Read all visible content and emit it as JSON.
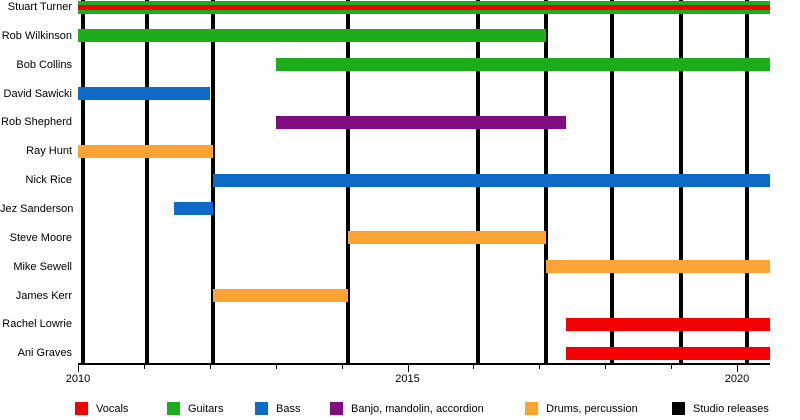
{
  "chart_data": {
    "type": "gantt",
    "description": "Band member tenure timeline with studio release markers",
    "x_axis": {
      "min": 2010,
      "max": 2020.5,
      "minor_tick_interval": 1,
      "major_tick_years": [
        2010,
        2015,
        2020
      ],
      "major_tick_labels": [
        "2010",
        "2015",
        "2020"
      ],
      "grid": false
    },
    "colors": {
      "vocals": "#f40000",
      "guitars": "#1cac1c",
      "bass": "#0d6bc7",
      "banjo": "#800d80",
      "drums": "#fba433",
      "releases": "#000000"
    },
    "members": [
      {
        "name": "Stuart Turner",
        "bars": [
          {
            "start": 2010.0,
            "end": 2020.5,
            "role": "Guitars",
            "color": "guitars"
          },
          {
            "start": 2010.0,
            "end": 2020.5,
            "role": "Vocals",
            "color": "vocals",
            "overlay_stripe": true
          }
        ]
      },
      {
        "name": "Rob Wilkinson",
        "bars": [
          {
            "start": 2010.0,
            "end": 2017.1,
            "role": "Guitars",
            "color": "guitars"
          }
        ]
      },
      {
        "name": "Bob Collins",
        "bars": [
          {
            "start": 2013.0,
            "end": 2020.5,
            "role": "Guitars",
            "color": "guitars"
          }
        ]
      },
      {
        "name": "David Sawicki",
        "bars": [
          {
            "start": 2010.0,
            "end": 2012.0,
            "role": "Bass",
            "color": "bass"
          }
        ]
      },
      {
        "name": "Rob Shepherd",
        "bars": [
          {
            "start": 2013.0,
            "end": 2017.4,
            "role": "Banjo, mandolin, accordion",
            "color": "banjo"
          }
        ]
      },
      {
        "name": "Ray Hunt",
        "bars": [
          {
            "start": 2010.0,
            "end": 2012.05,
            "role": "Drums, percussion",
            "color": "drums"
          }
        ]
      },
      {
        "name": "Nick Rice",
        "bars": [
          {
            "start": 2012.05,
            "end": 2020.5,
            "role": "Bass",
            "color": "bass"
          }
        ]
      },
      {
        "name": "Jez Sanderson",
        "bars": [
          {
            "start": 2011.45,
            "end": 2012.05,
            "role": "Bass",
            "color": "bass"
          }
        ]
      },
      {
        "name": "Steve Moore",
        "bars": [
          {
            "start": 2014.1,
            "end": 2017.1,
            "role": "Drums, percussion",
            "color": "drums"
          }
        ]
      },
      {
        "name": "Mike Sewell",
        "bars": [
          {
            "start": 2017.1,
            "end": 2020.5,
            "role": "Drums, percussion",
            "color": "drums"
          }
        ]
      },
      {
        "name": "James Kerr",
        "bars": [
          {
            "start": 2012.05,
            "end": 2014.1,
            "role": "Drums, percussion",
            "color": "drums"
          }
        ]
      },
      {
        "name": "Rachel Lowrie",
        "bars": [
          {
            "start": 2017.4,
            "end": 2020.5,
            "role": "Vocals",
            "color": "vocals"
          }
        ]
      },
      {
        "name": "Ani Graves",
        "bars": [
          {
            "start": 2017.4,
            "end": 2020.5,
            "role": "Vocals",
            "color": "vocals"
          }
        ]
      }
    ],
    "studio_releases_years": [
      2010.07,
      2011.05,
      2012.05,
      2014.1,
      2016.07,
      2017.1,
      2018.1,
      2019.15,
      2020.15
    ],
    "legend": [
      {
        "label": "Vocals",
        "color": "vocals"
      },
      {
        "label": "Guitars",
        "color": "guitars"
      },
      {
        "label": "Bass",
        "color": "bass"
      },
      {
        "label": "Banjo, mandolin, accordion",
        "color": "banjo"
      },
      {
        "label": "Drums, percussion",
        "color": "drums"
      },
      {
        "label": "Studio releases",
        "color": "releases"
      }
    ]
  }
}
